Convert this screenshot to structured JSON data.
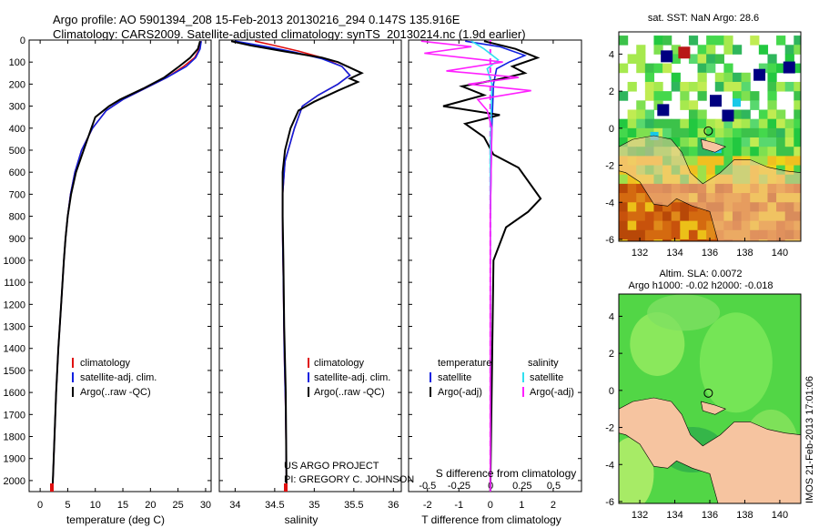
{
  "header": {
    "line1": "Argo profile: AO 5901394_208 15-Feb-2013 20130216_294 0.147S 135.916E",
    "line2": "Climatology: CARS2009. Satellite-adjusted climatology: synTS_20130214.nc (1.9d earlier)"
  },
  "colors": {
    "climatology": "#e01010",
    "satellite": "#1020e0",
    "argo": "#000000",
    "salinity_satellite": "#30e0f0",
    "salinity_argo": "#ff20ff",
    "land": "#f6c4a0",
    "ocean_green": "#46d24a",
    "sst_dark": "#000080"
  },
  "annotation": {
    "project": "US ARGO PROJECT",
    "pi": "PI: GREGORY C. JOHNSON"
  },
  "chart_data": [
    {
      "type": "line",
      "panel": "temperature",
      "xlabel": "temperature (deg C)",
      "xlim": [
        -2,
        31
      ],
      "xticks": [
        0,
        5,
        10,
        15,
        20,
        25,
        30
      ],
      "ylim": [
        2050,
        0
      ],
      "yticks": [
        0,
        100,
        200,
        300,
        400,
        500,
        600,
        700,
        800,
        900,
        1000,
        1100,
        1200,
        1300,
        1400,
        1500,
        1600,
        1700,
        1800,
        1900,
        2000
      ],
      "legend": [
        "climatology",
        "satellite-adj. clim.",
        "Argo(..raw -QC)"
      ],
      "series": [
        {
          "name": "climatology",
          "color": "climatology",
          "points": [
            [
              29.2,
              5
            ],
            [
              28.9,
              40
            ],
            [
              28,
              80
            ],
            [
              26,
              120
            ],
            [
              23,
              170
            ],
            [
              19,
              220
            ],
            [
              15,
              270
            ],
            [
              12,
              320
            ],
            [
              9.5,
              400
            ],
            [
              7.5,
              500
            ],
            [
              6.3,
              600
            ],
            [
              5.5,
              700
            ],
            [
              5,
              800
            ],
            [
              4.6,
              900
            ],
            [
              4.3,
              1000
            ],
            [
              3.8,
              1200
            ],
            [
              3.3,
              1400
            ],
            [
              2.9,
              1600
            ],
            [
              2.6,
              1800
            ],
            [
              2.3,
              2000
            ],
            [
              2.2,
              2050
            ]
          ]
        },
        {
          "name": "satellite-adj. clim.",
          "color": "satellite",
          "points": [
            [
              29.2,
              5
            ],
            [
              29,
              40
            ],
            [
              28.2,
              80
            ],
            [
              26.5,
              120
            ],
            [
              23,
              170
            ],
            [
              19,
              220
            ],
            [
              15,
              270
            ],
            [
              12,
              320
            ],
            [
              9.5,
              400
            ],
            [
              7.5,
              500
            ],
            [
              6.3,
              600
            ],
            [
              5.5,
              700
            ],
            [
              5,
              800
            ],
            [
              4.6,
              900
            ],
            [
              4.3,
              1000
            ],
            [
              3.8,
              1200
            ],
            [
              3.3,
              1400
            ],
            [
              2.9,
              1600
            ],
            [
              2.6,
              1800
            ],
            [
              2.3,
              2000
            ],
            [
              2.2,
              2050
            ]
          ]
        },
        {
          "name": "Argo(..raw -QC)",
          "color": "argo",
          "points": [
            [
              29,
              5
            ],
            [
              28.6,
              40
            ],
            [
              27.2,
              80
            ],
            [
              25.2,
              120
            ],
            [
              22.5,
              170
            ],
            [
              18.7,
              220
            ],
            [
              14.5,
              270
            ],
            [
              12.5,
              300
            ],
            [
              10,
              350
            ],
            [
              9,
              420
            ],
            [
              7.6,
              520
            ],
            [
              6.5,
              600
            ],
            [
              5.6,
              700
            ],
            [
              5,
              800
            ],
            [
              4.6,
              900
            ],
            [
              4.3,
              1000
            ],
            [
              3.8,
              1200
            ],
            [
              3.3,
              1400
            ],
            [
              2.9,
              1600
            ],
            [
              2.6,
              1800
            ],
            [
              2.3,
              2000
            ],
            [
              2.2,
              2050
            ]
          ]
        }
      ]
    },
    {
      "type": "line",
      "panel": "salinity",
      "xlabel": "salinity",
      "xlim": [
        33.8,
        36.1
      ],
      "xticks": [
        34,
        34.5,
        35,
        35.5,
        36
      ],
      "ylim": [
        2050,
        0
      ],
      "legend": [
        "climatology",
        "satellite-adj. clim.",
        "Argo(..raw -QC)"
      ],
      "series": [
        {
          "name": "climatology",
          "color": "climatology",
          "points": [
            [
              34.25,
              5
            ],
            [
              34.5,
              25
            ],
            [
              34.8,
              50
            ],
            [
              35.1,
              80
            ],
            [
              35.35,
              120
            ],
            [
              35.45,
              160
            ],
            [
              35.3,
              200
            ],
            [
              35.05,
              250
            ],
            [
              34.85,
              300
            ],
            [
              34.75,
              400
            ],
            [
              34.63,
              550
            ],
            [
              34.6,
              700
            ],
            [
              34.6,
              900
            ],
            [
              34.61,
              1100
            ],
            [
              34.62,
              1400
            ],
            [
              34.64,
              1700
            ],
            [
              34.65,
              2050
            ]
          ]
        },
        {
          "name": "satellite-adj. clim.",
          "color": "satellite",
          "points": [
            [
              34.0,
              5
            ],
            [
              34.4,
              30
            ],
            [
              34.75,
              55
            ],
            [
              35.1,
              85
            ],
            [
              35.35,
              120
            ],
            [
              35.45,
              160
            ],
            [
              35.3,
              200
            ],
            [
              35.05,
              250
            ],
            [
              34.85,
              300
            ],
            [
              34.75,
              400
            ],
            [
              34.63,
              550
            ],
            [
              34.6,
              700
            ],
            [
              34.6,
              900
            ],
            [
              34.61,
              1100
            ],
            [
              34.62,
              1400
            ],
            [
              34.64,
              1700
            ],
            [
              34.65,
              2050
            ]
          ]
        },
        {
          "name": "Argo(..raw -QC)",
          "color": "argo",
          "points": [
            [
              33.95,
              5
            ],
            [
              34.2,
              25
            ],
            [
              34.6,
              50
            ],
            [
              35.1,
              80
            ],
            [
              35.3,
              100
            ],
            [
              35.6,
              150
            ],
            [
              35.45,
              175
            ],
            [
              35.55,
              190
            ],
            [
              35.3,
              230
            ],
            [
              35.0,
              280
            ],
            [
              34.8,
              320
            ],
            [
              34.7,
              400
            ],
            [
              34.63,
              500
            ],
            [
              34.6,
              600
            ],
            [
              34.6,
              800
            ],
            [
              34.61,
              1000
            ],
            [
              34.62,
              1300
            ],
            [
              34.64,
              1600
            ],
            [
              34.65,
              2050
            ]
          ]
        }
      ]
    },
    {
      "type": "line",
      "panel": "difference",
      "xlabel_top": "S difference from climatology",
      "xticks_top": [
        -0.5,
        -0.25,
        0,
        0.25,
        0.5
      ],
      "xlabel": "T difference from climatology",
      "xlim": [
        -2.6,
        2.9
      ],
      "xticks": [
        -2,
        -1,
        0,
        1,
        2
      ],
      "ylim": [
        2050,
        0
      ],
      "legend": {
        "temperature": [
          "satellite",
          "Argo(-adj)"
        ],
        "salinity": [
          "satellite",
          "Argo(-adj)"
        ]
      },
      "series": [
        {
          "name": "satellite",
          "color": "satellite",
          "points": [
            [
              -0.8,
              5
            ],
            [
              0.3,
              30
            ],
            [
              1.1,
              70
            ],
            [
              0.6,
              100
            ],
            [
              0.2,
              130
            ],
            [
              0.1,
              200
            ],
            [
              0.05,
              400
            ],
            [
              0,
              800
            ],
            [
              0,
              2050
            ]
          ]
        },
        {
          "name": "Argo(-adj)",
          "color": "argo",
          "points": [
            [
              -0.2,
              5
            ],
            [
              0.8,
              40
            ],
            [
              1.5,
              80
            ],
            [
              0.7,
              120
            ],
            [
              1.1,
              150
            ],
            [
              0.2,
              180
            ],
            [
              -0.9,
              210
            ],
            [
              -0.2,
              250
            ],
            [
              -1.5,
              300
            ],
            [
              0.3,
              340
            ],
            [
              -0.8,
              380
            ],
            [
              -0.2,
              440
            ],
            [
              0.1,
              520
            ],
            [
              0.9,
              580
            ],
            [
              1.6,
              720
            ],
            [
              1.2,
              780
            ],
            [
              0.5,
              850
            ],
            [
              0.1,
              1000
            ],
            [
              0,
              2050
            ]
          ]
        },
        {
          "name": "satellite (salinity)",
          "color": "salinity_satellite",
          "points": [
            [
              -0.6,
              5
            ],
            [
              -0.2,
              40
            ],
            [
              0.25,
              90
            ],
            [
              -0.1,
              130
            ],
            [
              0.05,
              200
            ],
            [
              0,
              500
            ],
            [
              0,
              2050
            ]
          ]
        },
        {
          "name": "Argo(-adj) (salinity)",
          "color": "salinity_argo",
          "points": [
            [
              -2.2,
              5
            ],
            [
              -0.6,
              30
            ],
            [
              -2.1,
              60
            ],
            [
              0.4,
              100
            ],
            [
              -1.4,
              140
            ],
            [
              0.9,
              170
            ],
            [
              -0.7,
              200
            ],
            [
              1.3,
              230
            ],
            [
              -0.4,
              270
            ],
            [
              -0.1,
              320
            ],
            [
              0.05,
              400
            ],
            [
              0,
              800
            ],
            [
              0,
              2050
            ]
          ]
        }
      ]
    },
    {
      "type": "heatmap",
      "panel": "sst-map",
      "title": "sat. SST: NaN Argo: 28.6",
      "xlim": [
        130.8,
        141.2
      ],
      "ylim": [
        -6.1,
        5.2
      ],
      "xticks": [
        132,
        134,
        136,
        138,
        140
      ],
      "yticks": [
        4,
        2,
        0,
        -2,
        -4,
        -6
      ],
      "float_position": [
        135.916,
        -0.147
      ]
    },
    {
      "type": "heatmap",
      "panel": "sla-map",
      "title": "Altim. SLA: 0.0072",
      "subtitle": "Argo h1000: -0.02 h2000: -0.018",
      "xlim": [
        130.8,
        141.2
      ],
      "ylim": [
        -6.1,
        5.2
      ],
      "xticks": [
        132,
        134,
        136,
        138,
        140
      ],
      "yticks": [
        4,
        2,
        0,
        -2,
        -4,
        -6
      ],
      "float_position": [
        135.916,
        -0.147
      ]
    }
  ],
  "side_label": "IMOS 21-Feb-2013 17:01:06"
}
